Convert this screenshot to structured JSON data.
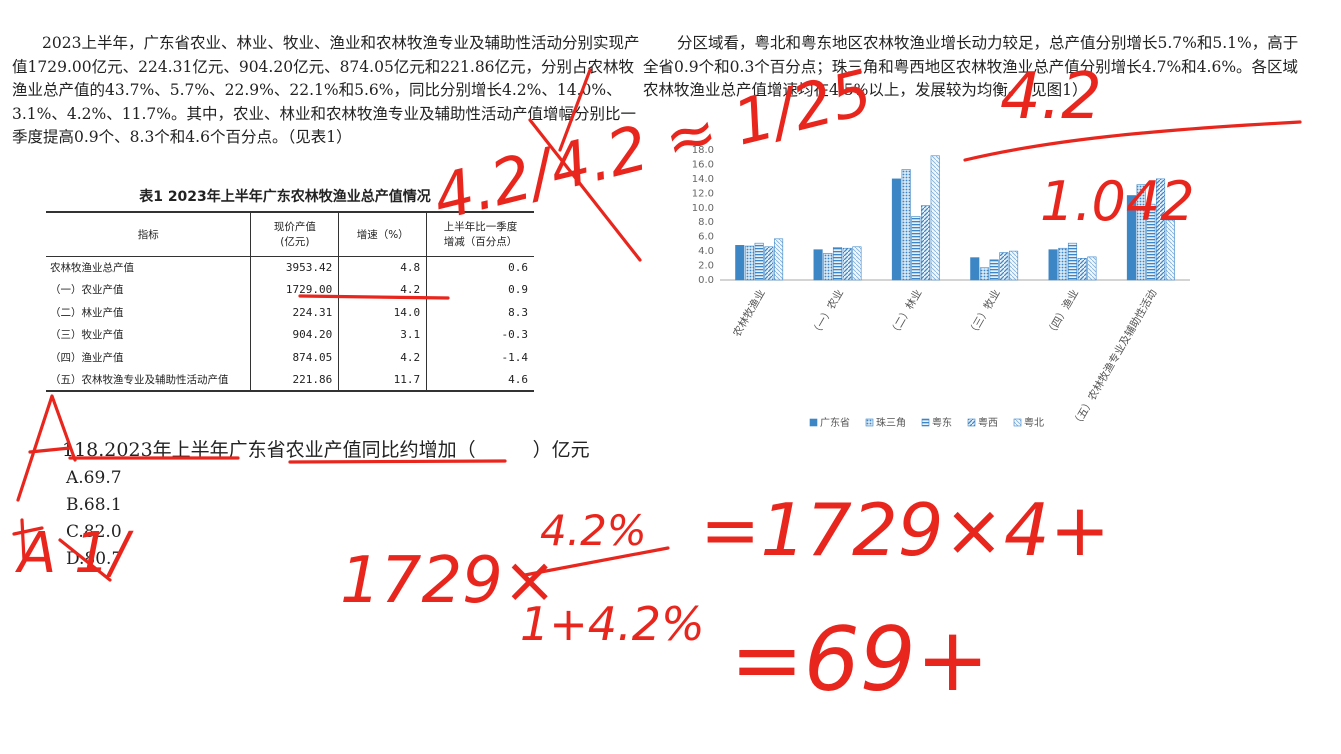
{
  "left_paragraph": "2023上半年，广东省农业、林业、牧业、渔业和农林牧渔专业及辅助性活动分别实现产值1729.00亿元、224.31亿元、904.20亿元、874.05亿元和221.86亿元，分别占农林牧渔业总产值的43.7%、5.7%、22.9%、22.1%和5.6%，同比分别增长4.2%、14.0%、3.1%、4.2%、11.7%。其中，农业、林业和农林牧渔专业及辅助性活动产值增幅分别比一季度提高0.9个、8.3个和4.6个百分点。（见表1）",
  "right_paragraph": "分区域看，粤北和粤东地区农林牧渔业增长动力较足，总产值分别增长5.7%和5.1%，高于全省0.9个和0.3个百分点；珠三角和粤西地区农林牧渔业总产值分别增长4.7%和4.6%。各区域农林牧渔业总产值增速均在4.5%以上，发展较为均衡。（见图1）",
  "table": {
    "title": "表1   2023年上半年广东农林牧渔业总产值情况",
    "headers": [
      "指标",
      "现价产值\n(亿元)",
      "增速（%）",
      "上半年比一季度\n增减（百分点）"
    ],
    "rows": [
      {
        "label": "农林牧渔业总产值",
        "value": "3953.42",
        "growth": "4.8",
        "change": "0.6"
      },
      {
        "label": "（一）农业产值",
        "value": "1729.00",
        "growth": "4.2",
        "change": "0.9"
      },
      {
        "label": "（二）林业产值",
        "value": "224.31",
        "growth": "14.0",
        "change": "8.3"
      },
      {
        "label": "（三）牧业产值",
        "value": "904.20",
        "growth": "3.1",
        "change": "-0.3"
      },
      {
        "label": "（四）渔业产值",
        "value": "874.05",
        "growth": "4.2",
        "change": "-1.4"
      },
      {
        "label": "（五）农林牧渔专业及辅助性活动产值",
        "value": "221.86",
        "growth": "11.7",
        "change": "4.6"
      }
    ]
  },
  "question": "118.2023年上半年广东省农业产值同比约增加（　　　）亿元",
  "options": {
    "a": "A.69.7",
    "b": "B.68.1",
    "c": "C.82.0",
    "d": "D.80.7"
  },
  "chart_data": {
    "type": "bar",
    "categories": [
      "农林牧渔业",
      "（一）农业",
      "（二）林业",
      "（三）牧业",
      "（四）渔业",
      "（五）农林牧渔专业及辅助性活动"
    ],
    "series": [
      {
        "name": "广东省",
        "values": [
          4.8,
          4.2,
          14.0,
          3.1,
          4.2,
          11.7
        ],
        "color": "#3d86c6",
        "pattern": "solid"
      },
      {
        "name": "珠三角",
        "values": [
          4.7,
          3.7,
          15.3,
          1.7,
          4.4,
          13.2
        ],
        "color": "#3d86c6",
        "pattern": "dots"
      },
      {
        "name": "粤东",
        "values": [
          5.1,
          4.5,
          8.8,
          2.8,
          5.1,
          10.5
        ],
        "color": "#3d86c6",
        "pattern": "hlines"
      },
      {
        "name": "粤西",
        "values": [
          4.6,
          4.4,
          10.3,
          3.8,
          3.0,
          14.0
        ],
        "color": "#3d86c6",
        "pattern": "diag"
      },
      {
        "name": "粤北",
        "values": [
          5.7,
          4.6,
          17.2,
          4.0,
          3.2,
          8.3
        ],
        "color": "#3d86c6",
        "pattern": "light"
      }
    ],
    "yticks": [
      "0.0",
      "2.0",
      "4.0",
      "6.0",
      "8.0",
      "10.0",
      "12.0",
      "14.0",
      "16.0",
      "18.0"
    ],
    "ylim": [
      0,
      18
    ],
    "legend": "bottom"
  },
  "handwriting": {
    "top": "4.2/4.2 ≈ 1/25",
    "right_top": "4.2",
    "right_mid": "1.042",
    "left_side": "A 1/",
    "formula_left": "1729×",
    "fraction_num": "4.2%",
    "fraction_den": "1+4.2%",
    "formula_right": "=1729×4+",
    "result": "=69+",
    "ink_color": "#e8261d"
  }
}
